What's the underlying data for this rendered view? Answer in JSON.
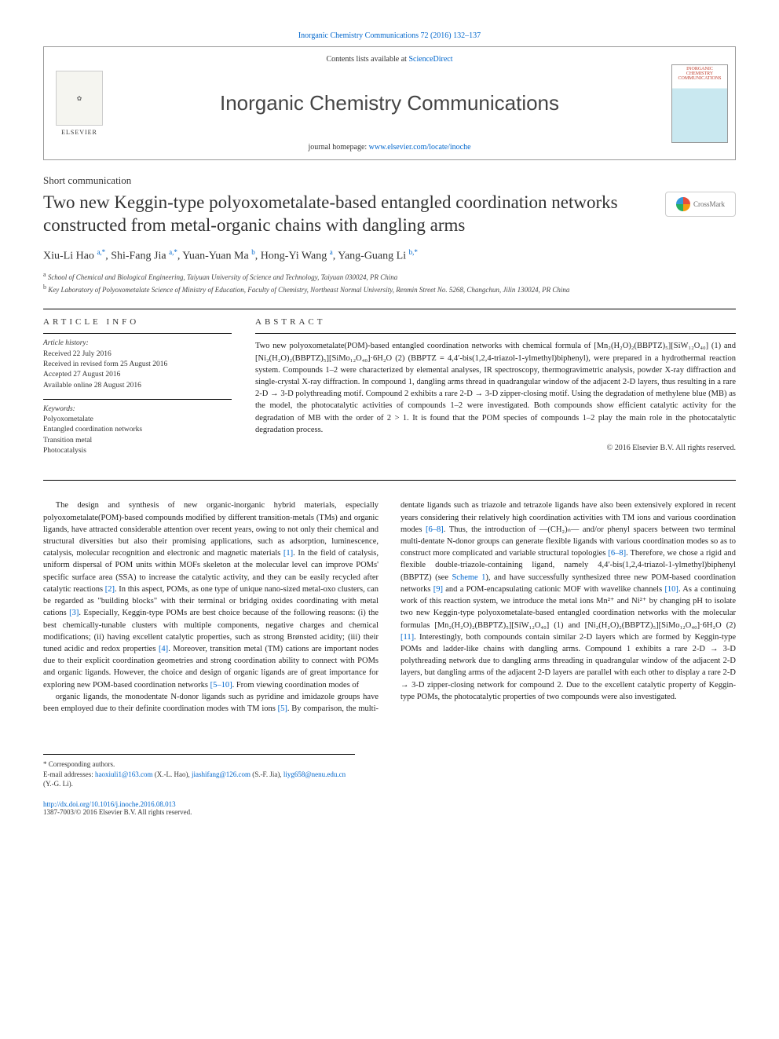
{
  "top_link": "Inorganic Chemistry Communications 72 (2016) 132–137",
  "header": {
    "contents_prefix": "Contents lists available at ",
    "contents_link": "ScienceDirect",
    "journal": "Inorganic Chemistry Communications",
    "homepage_prefix": "journal homepage: ",
    "homepage_url": "www.elsevier.com/locate/inoche",
    "elsevier": "ELSEVIER",
    "cover_label": "INORGANIC CHEMISTRY COMMUNICATIONS"
  },
  "article_type": "Short communication",
  "title": "Two new Keggin-type polyoxometalate-based entangled coordination networks constructed from metal-organic chains with dangling arms",
  "crossmark": "CrossMark",
  "authors_html": "Xiu-Li Hao <sup>a,*</sup>, Shi-Fang Jia <sup>a,*</sup>, Yuan-Yuan Ma <sup>b</sup>, Hong-Yi Wang <sup>a</sup>, Yang-Guang Li <sup>b,*</sup>",
  "affiliations": {
    "a": "School of Chemical and Biological Engineering, Taiyuan University of Science and Technology, Taiyuan 030024, PR China",
    "b": "Key Laboratory of Polyoxometalate Science of Ministry of Education, Faculty of Chemistry, Northeast Normal University, Renmin Street No. 5268, Changchun, Jilin 130024, PR China"
  },
  "info": {
    "heading": "ARTICLE INFO",
    "history_label": "Article history:",
    "received": "Received 22 July 2016",
    "revised": "Received in revised form 25 August 2016",
    "accepted": "Accepted 27 August 2016",
    "online": "Available online 28 August 2016",
    "keywords_label": "Keywords:",
    "keywords": [
      "Polyoxometalate",
      "Entangled coordination networks",
      "Transition metal",
      "Photocatalysis"
    ]
  },
  "abstract": {
    "heading": "ABSTRACT",
    "text": "Two new polyoxometalate(POM)-based entangled coordination networks with chemical formula of [Mn₂(H₂O)₂(BBPTZ)₅][SiW₁₂O₄₀] (1) and [Ni₂(H₂O)₂(BBPTZ)₅][SiMo₁₂O₄₀]·6H₂O (2) (BBPTZ = 4,4′-bis(1,2,4-triazol-1-ylmethyl)biphenyl), were prepared in a hydrothermal reaction system. Compounds 1–2 were characterized by elemental analyses, IR spectroscopy, thermogravimetric analysis, powder X-ray diffraction and single-crystal X-ray diffraction. In compound 1, dangling arms thread in quadrangular window of the adjacent 2-D layers, thus resulting in a rare 2-D → 3-D polythreading motif. Compound 2 exhibits a rare 2-D → 3-D zipper-closing motif. Using the degradation of methylene blue (MB) as the model, the photocatalytic activities of compounds 1–2 were investigated. Both compounds show efficient catalytic activity for the degradation of MB with the order of 2 > 1. It is found that the POM species of compounds 1–2 play the main role in the photocatalytic degradation process.",
    "copyright": "© 2016 Elsevier B.V. All rights reserved."
  },
  "body": {
    "p1": "The design and synthesis of new organic-inorganic hybrid materials, especially polyoxometalate(POM)-based compounds modified by different transition-metals (TMs) and organic ligands, have attracted considerable attention over recent years, owing to not only their chemical and structural diversities but also their promising applications, such as adsorption, luminescence, catalysis, molecular recognition and electronic and magnetic materials [1]. In the field of catalysis, uniform dispersal of POM units within MOFs skeleton at the molecular level can improve POMs' specific surface area (SSA) to increase the catalytic activity, and they can be easily recycled after catalytic reactions [2]. In this aspect, POMs, as one type of unique nano-sized metal-oxo clusters, can be regarded as \"building blocks\" with their terminal or bridging oxides coordinating with metal cations [3]. Especially, Keggin-type POMs are best choice because of the following reasons: (i) the best chemically-tunable clusters with multiple components, negative charges and chemical modifications; (ii) having excellent catalytic properties, such as strong Brønsted acidity; (iii) their tuned acidic and redox properties [4]. Moreover, transition metal (TM) cations are important nodes due to their explicit coordination geometries and strong coordination ability to connect with POMs and organic ligands. However, the choice and design of organic ligands are of great importance for exploring new POM-based coordination networks [5–10]. From viewing coordination modes of",
    "p2": "organic ligands, the monodentate N-donor ligands such as pyridine and imidazole groups have been employed due to their definite coordination modes with TM ions [5]. By comparison, the multi-dentate ligands such as triazole and tetrazole ligands have also been extensively explored in recent years considering their relatively high coordination activities with TM ions and various coordination modes [6–8]. Thus, the introduction of —(CH₂)ₙ— and/or phenyl spacers between two terminal multi-dentate N-donor groups can generate flexible ligands with various coordination modes so as to construct more complicated and variable structural topologies [6–8]. Therefore, we chose a rigid and flexible double-triazole-containing ligand, namely 4,4′-bis(1,2,4-triazol-1-ylmethyl)biphenyl (BBPTZ) (see Scheme 1), and have successfully synthesized three new POM-based coordination networks [9] and a POM-encapsulating cationic MOF with wavelike channels [10]. As a continuing work of this reaction system, we introduce the metal ions Mn²⁺ and Ni²⁺ by changing pH to isolate two new Keggin-type polyoxometalate-based entangled coordination networks with the molecular formulas [Mn₂(H₂O)₂(BBPTZ)₅][SiW₁₂O₄₀] (1) and [Ni₂(H₂O)₂(BBPTZ)₅][SiMo₁₂O₄₀]·6H₂O (2) [11]. Interestingly, both compounds contain similar 2-D layers which are formed by Keggin-type POMs and ladder-like chains with dangling arms. Compound 1 exhibits a rare 2-D → 3-D polythreading network due to dangling arms threading in quadrangular window of the adjacent 2-D layers, but dangling arms of the adjacent 2-D layers are parallel with each other to display a rare 2-D → 3-D zipper-closing network for compound 2. Due to the excellent catalytic property of Keggin-type POMs, the photocatalytic properties of two compounds were also investigated."
  },
  "footnotes": {
    "corr": "* Corresponding authors.",
    "email_label": "E-mail addresses: ",
    "e1": "haoxiuli1@163.com",
    "e1_who": " (X.-L. Hao), ",
    "e2": "jiashifang@126.com",
    "e2_who": " (S.-F. Jia), ",
    "e3": "liyg658@nenu.edu.cn",
    "e3_who": " (Y.-G. Li)."
  },
  "doi": {
    "url": "http://dx.doi.org/10.1016/j.inoche.2016.08.013",
    "issn": "1387-7003/© 2016 Elsevier B.V. All rights reserved."
  },
  "colors": {
    "link": "#0066cc",
    "text": "#222222",
    "border": "#999999"
  }
}
